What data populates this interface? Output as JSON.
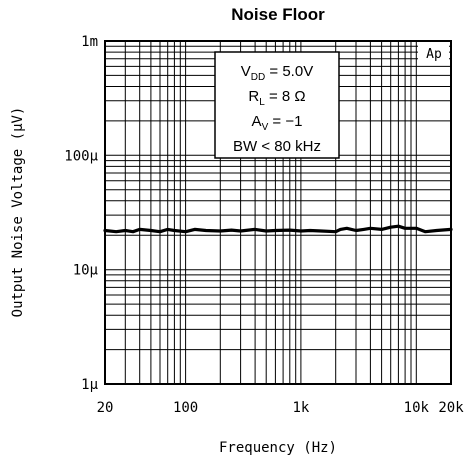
{
  "chart_data": {
    "type": "line",
    "title": "Noise Floor",
    "xlabel": "Frequency (Hz)",
    "ylabel": "Output Noise Voltage (μV)",
    "x_scale": "log",
    "y_scale": "log",
    "xlim": [
      20,
      20000
    ],
    "ylim": [
      1,
      1000
    ],
    "x_ticks": [
      {
        "value": 20,
        "label": "20"
      },
      {
        "value": 100,
        "label": "100"
      },
      {
        "value": 1000,
        "label": "1k"
      },
      {
        "value": 10000,
        "label": "10k"
      },
      {
        "value": 20000,
        "label": "20k"
      }
    ],
    "y_ticks": [
      {
        "value": 1,
        "label": "1μ"
      },
      {
        "value": 10,
        "label": "10μ"
      },
      {
        "value": 100,
        "label": "100μ"
      },
      {
        "value": 1000,
        "label": "1m"
      }
    ],
    "grid": true,
    "series": [
      {
        "x": [
          20,
          25,
          30,
          35,
          40,
          50,
          60,
          70,
          80,
          100,
          120,
          150,
          200,
          250,
          300,
          400,
          500,
          600,
          800,
          1000,
          1200,
          1500,
          2000,
          2200,
          2500,
          3000,
          3500,
          4000,
          5000,
          6000,
          7000,
          8000,
          10000,
          12000,
          15000,
          20000
        ],
        "y": [
          22,
          21.5,
          22,
          21.5,
          22.5,
          22,
          21.5,
          22.5,
          22,
          21.5,
          22.5,
          22,
          21.8,
          22.2,
          21.8,
          22.5,
          21.8,
          22,
          22.2,
          21.8,
          22,
          21.8,
          21.5,
          22.5,
          23,
          22,
          22.5,
          23,
          22.5,
          23.5,
          24,
          23,
          23,
          21.5,
          22,
          22.5
        ]
      }
    ],
    "annotations": {
      "vdd_main": "V",
      "vdd_sub": "DD",
      "vdd_val": " = 5.0V",
      "rl_main": "R",
      "rl_sub": "L",
      "rl_val": " = 8 Ω",
      "av_main": "A",
      "av_sub": "V",
      "av_val": " = −1",
      "bw": "BW < 80 kHz",
      "ap": "Ap"
    }
  }
}
